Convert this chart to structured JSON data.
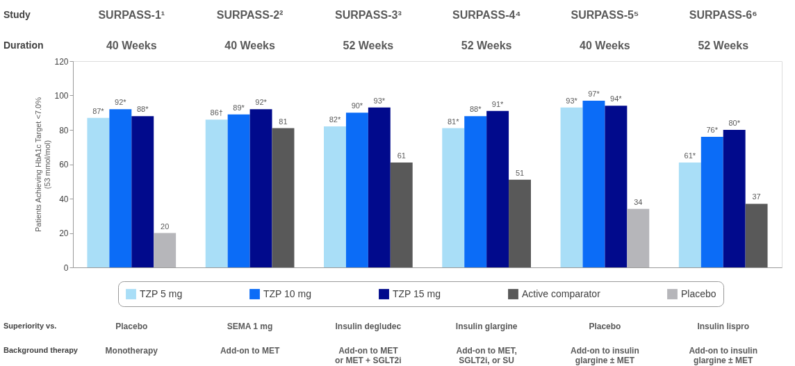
{
  "chart_data": {
    "type": "bar",
    "categories": [
      "SURPASS-1¹",
      "SURPASS-2²",
      "SURPASS-3³",
      "SURPASS-4⁴",
      "SURPASS-5⁵",
      "SURPASS-6⁶"
    ],
    "ylabel": "Patients Achieving HbA1c Target <7.0%\n(53 mmol/mol)",
    "ylim": [
      0,
      120
    ],
    "yticks": [
      0,
      20,
      40,
      60,
      80,
      100,
      120
    ],
    "grid": false,
    "legend": "bottom",
    "series": [
      {
        "name": "TZP 5 mg",
        "color": "#a9def7",
        "values": [
          87,
          86,
          82,
          81,
          93,
          61
        ],
        "value_labels": [
          "87*",
          "86†",
          "82*",
          "81*",
          "93*",
          "61*"
        ]
      },
      {
        "name": "TZP 10 mg",
        "color": "#0b6cf7",
        "values": [
          92,
          89,
          90,
          88,
          97,
          76
        ],
        "value_labels": [
          "92*",
          "89*",
          "90*",
          "88*",
          "97*",
          "76*"
        ]
      },
      {
        "name": "TZP 15 mg",
        "color": "#010a8c",
        "values": [
          88,
          92,
          93,
          91,
          94,
          80
        ],
        "value_labels": [
          "88*",
          "92*",
          "93*",
          "91*",
          "94*",
          "80*"
        ]
      },
      {
        "name": "Active comparator",
        "color": "#595959",
        "values": [
          null,
          81,
          61,
          51,
          null,
          37
        ],
        "value_labels": [
          null,
          "81",
          "61",
          "51",
          null,
          "37"
        ]
      },
      {
        "name": "Placebo",
        "color": "#b6b6ba",
        "values": [
          20,
          null,
          null,
          null,
          34,
          null
        ],
        "value_labels": [
          "20",
          null,
          null,
          null,
          "34",
          null
        ]
      }
    ],
    "annotations": [
      "Study",
      "Duration",
      "40 Weeks",
      "40 Weeks",
      "52 Weeks",
      "52 Weeks",
      "40 Weeks",
      "52 Weeks",
      "Superiority vs.",
      "Placebo",
      "SEMA 1 mg",
      "Insulin degludec",
      "Insulin glargine",
      "Placebo",
      "Insulin lispro",
      "Background therapy",
      "Monotherapy",
      "Add-on to MET",
      "Add-on to MET\nor MET + SGLT2i",
      "Add-on to MET,\nSGLT2i, or SU",
      "Add-on to insulin\nglargine ± MET",
      "Add-on to insulin\nglargine ± MET"
    ]
  }
}
